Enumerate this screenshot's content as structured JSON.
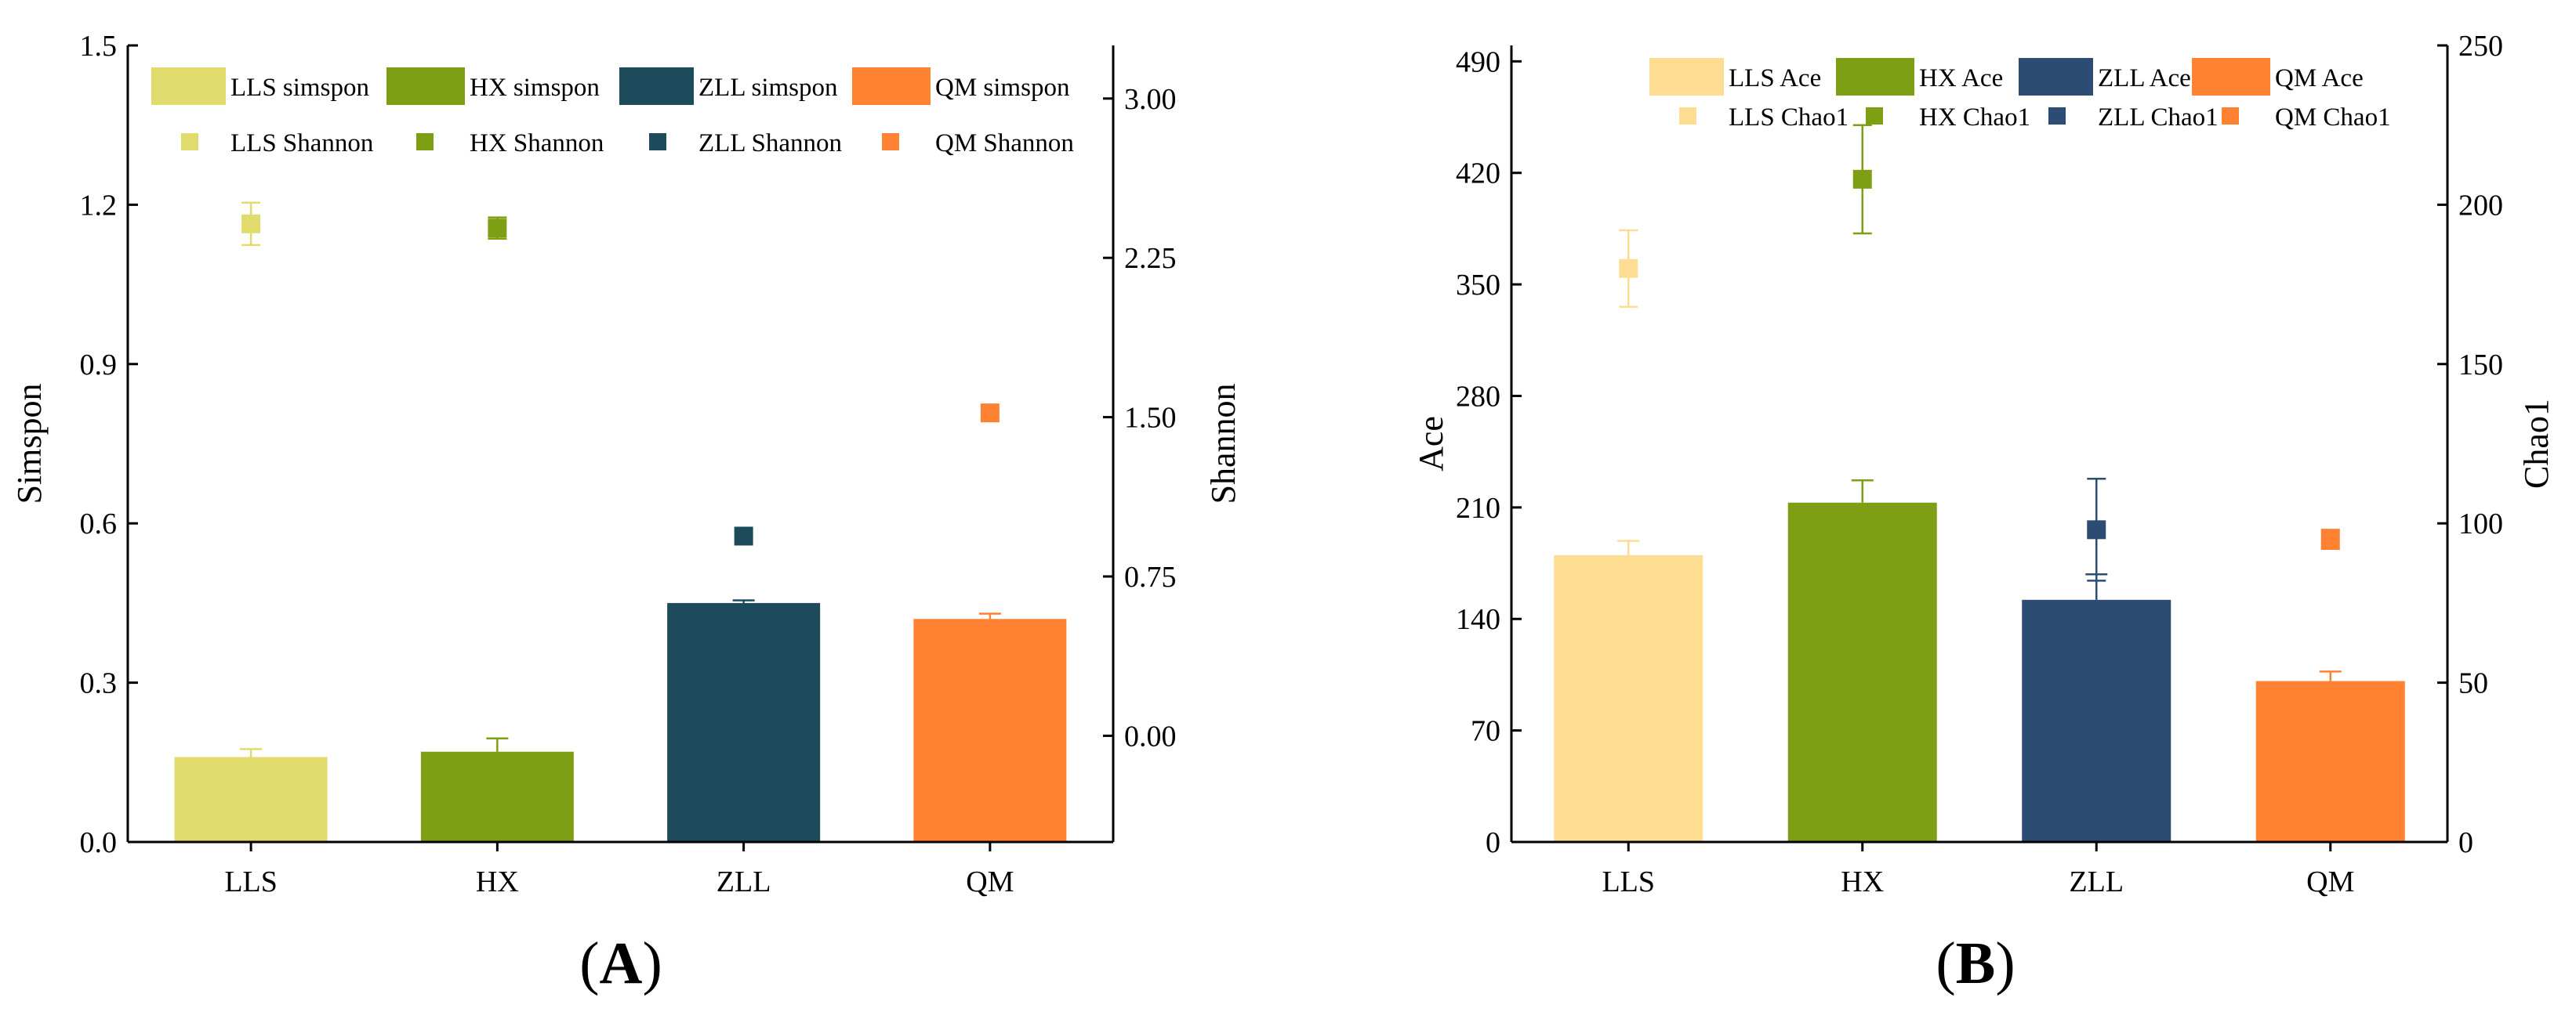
{
  "chart_data": [
    {
      "type": "bar",
      "panel_label": {
        "open": "(",
        "letter": "A",
        "close": ")"
      },
      "categories": [
        "LLS",
        "HX",
        "ZLL",
        "QM"
      ],
      "ylabel_left": "Simspon",
      "ylabel_right": "Shannon",
      "ylim_left": [
        0,
        1.5
      ],
      "ylim_right": [
        -0.5,
        3.25
      ],
      "yticks_left": [
        0.0,
        0.3,
        0.6,
        0.9,
        1.2,
        1.5
      ],
      "yticks_left_labels": [
        "0.0",
        "0.3",
        "0.6",
        "0.9",
        "1.2",
        "1.5"
      ],
      "yticks_right": [
        0.0,
        0.75,
        1.5,
        2.25,
        3.0
      ],
      "yticks_right_labels": [
        "0.00",
        "0.75",
        "1.50",
        "2.25",
        "3.00"
      ],
      "colors": [
        "#e1db6e",
        "#7e9f14",
        "#1e4b5c",
        "#ff8233"
      ],
      "series": [
        {
          "name": "simspon",
          "axis": "left",
          "kind": "bar",
          "values": [
            0.16,
            0.17,
            0.45,
            0.42
          ],
          "errors": [
            0.015,
            0.025,
            0.005,
            0.01
          ],
          "legend": [
            "LLS simspon",
            "HX simspon",
            "ZLL simspon",
            "QM simspon"
          ]
        },
        {
          "name": "Shannon",
          "axis": "right",
          "kind": "scatter",
          "values": [
            2.41,
            2.39,
            0.94,
            1.52
          ],
          "errors": [
            0.1,
            0.05,
            0,
            0
          ],
          "legend": [
            "LLS Shannon",
            "HX Shannon",
            "ZLL Shannon",
            "QM Shannon"
          ]
        }
      ]
    },
    {
      "type": "bar",
      "panel_label": {
        "open": "(",
        "letter": "B",
        "close": ")"
      },
      "categories": [
        "LLS",
        "HX",
        "ZLL",
        "QM"
      ],
      "ylabel_left": "Ace",
      "ylabel_right": "Chao1",
      "ylim_left": [
        0,
        500
      ],
      "ylim_right": [
        0,
        250
      ],
      "yticks_left": [
        0,
        70,
        140,
        210,
        280,
        350,
        420,
        490
      ],
      "yticks_left_labels": [
        "0",
        "70",
        "140",
        "210",
        "280",
        "350",
        "420",
        "490"
      ],
      "yticks_right": [
        0,
        50,
        100,
        150,
        200,
        250
      ],
      "yticks_right_labels": [
        "0",
        "50",
        "100",
        "150",
        "200",
        "250"
      ],
      "colors": [
        "#fedd92",
        "#7e9f14",
        "#2c4c74",
        "#ff8233"
      ],
      "series": [
        {
          "name": "Ace",
          "axis": "left",
          "kind": "bar",
          "values": [
            180,
            213,
            152,
            101
          ],
          "errors": [
            9,
            14,
            16,
            6
          ],
          "legend": [
            "LLS Ace",
            "HX Ace",
            "ZLL Ace",
            "QM Ace"
          ]
        },
        {
          "name": "Chao1",
          "axis": "right",
          "kind": "scatter",
          "values": [
            180,
            208,
            98,
            95
          ],
          "errors": [
            12,
            17,
            16,
            3
          ],
          "legend": [
            "LLS Chao1",
            "HX Chao1",
            "ZLL Chao1",
            "QM Chao1"
          ]
        }
      ]
    }
  ]
}
